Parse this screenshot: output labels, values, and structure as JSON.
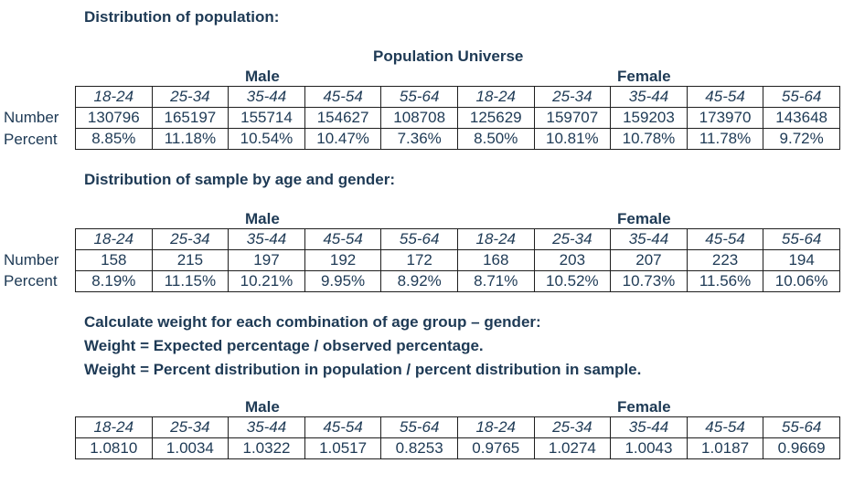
{
  "section1": {
    "heading": "Distribution of population:",
    "title": "Population Universe",
    "male_label": "Male",
    "female_label": "Female",
    "ages": [
      "18-24",
      "25-34",
      "35-44",
      "45-54",
      "55-64",
      "18-24",
      "25-34",
      "35-44",
      "45-54",
      "55-64"
    ],
    "row_labels": [
      "Number",
      "Percent"
    ],
    "number": [
      "130796",
      "165197",
      "155714",
      "154627",
      "108708",
      "125629",
      "159707",
      "159203",
      "173970",
      "143648"
    ],
    "percent": [
      "8.85%",
      "11.18%",
      "10.54%",
      "10.47%",
      "7.36%",
      "8.50%",
      "10.81%",
      "10.78%",
      "11.78%",
      "9.72%"
    ]
  },
  "section2": {
    "heading": "Distribution of sample by age and gender:",
    "male_label": "Male",
    "female_label": "Female",
    "ages": [
      "18-24",
      "25-34",
      "35-44",
      "45-54",
      "55-64",
      "18-24",
      "25-34",
      "35-44",
      "45-54",
      "55-64"
    ],
    "row_labels": [
      "Number",
      "Percent"
    ],
    "number": [
      "158",
      "215",
      "197",
      "192",
      "172",
      "168",
      "203",
      "207",
      "223",
      "194"
    ],
    "percent": [
      "8.19%",
      "11.15%",
      "10.21%",
      "9.95%",
      "8.92%",
      "8.71%",
      "10.52%",
      "10.73%",
      "11.56%",
      "10.06%"
    ]
  },
  "section3": {
    "heading_lines": [
      "Calculate weight for each combination of age group – gender:",
      "Weight = Expected percentage / observed percentage.",
      "Weight = Percent distribution in population / percent distribution in sample."
    ],
    "male_label": "Male",
    "female_label": "Female",
    "ages": [
      "18-24",
      "25-34",
      "35-44",
      "45-54",
      "55-64",
      "18-24",
      "25-34",
      "35-44",
      "45-54",
      "55-64"
    ],
    "weights": [
      "1.0810",
      "1.0034",
      "1.0322",
      "1.0517",
      "0.8253",
      "0.9765",
      "1.0274",
      "1.0043",
      "1.0187",
      "0.9669"
    ]
  }
}
